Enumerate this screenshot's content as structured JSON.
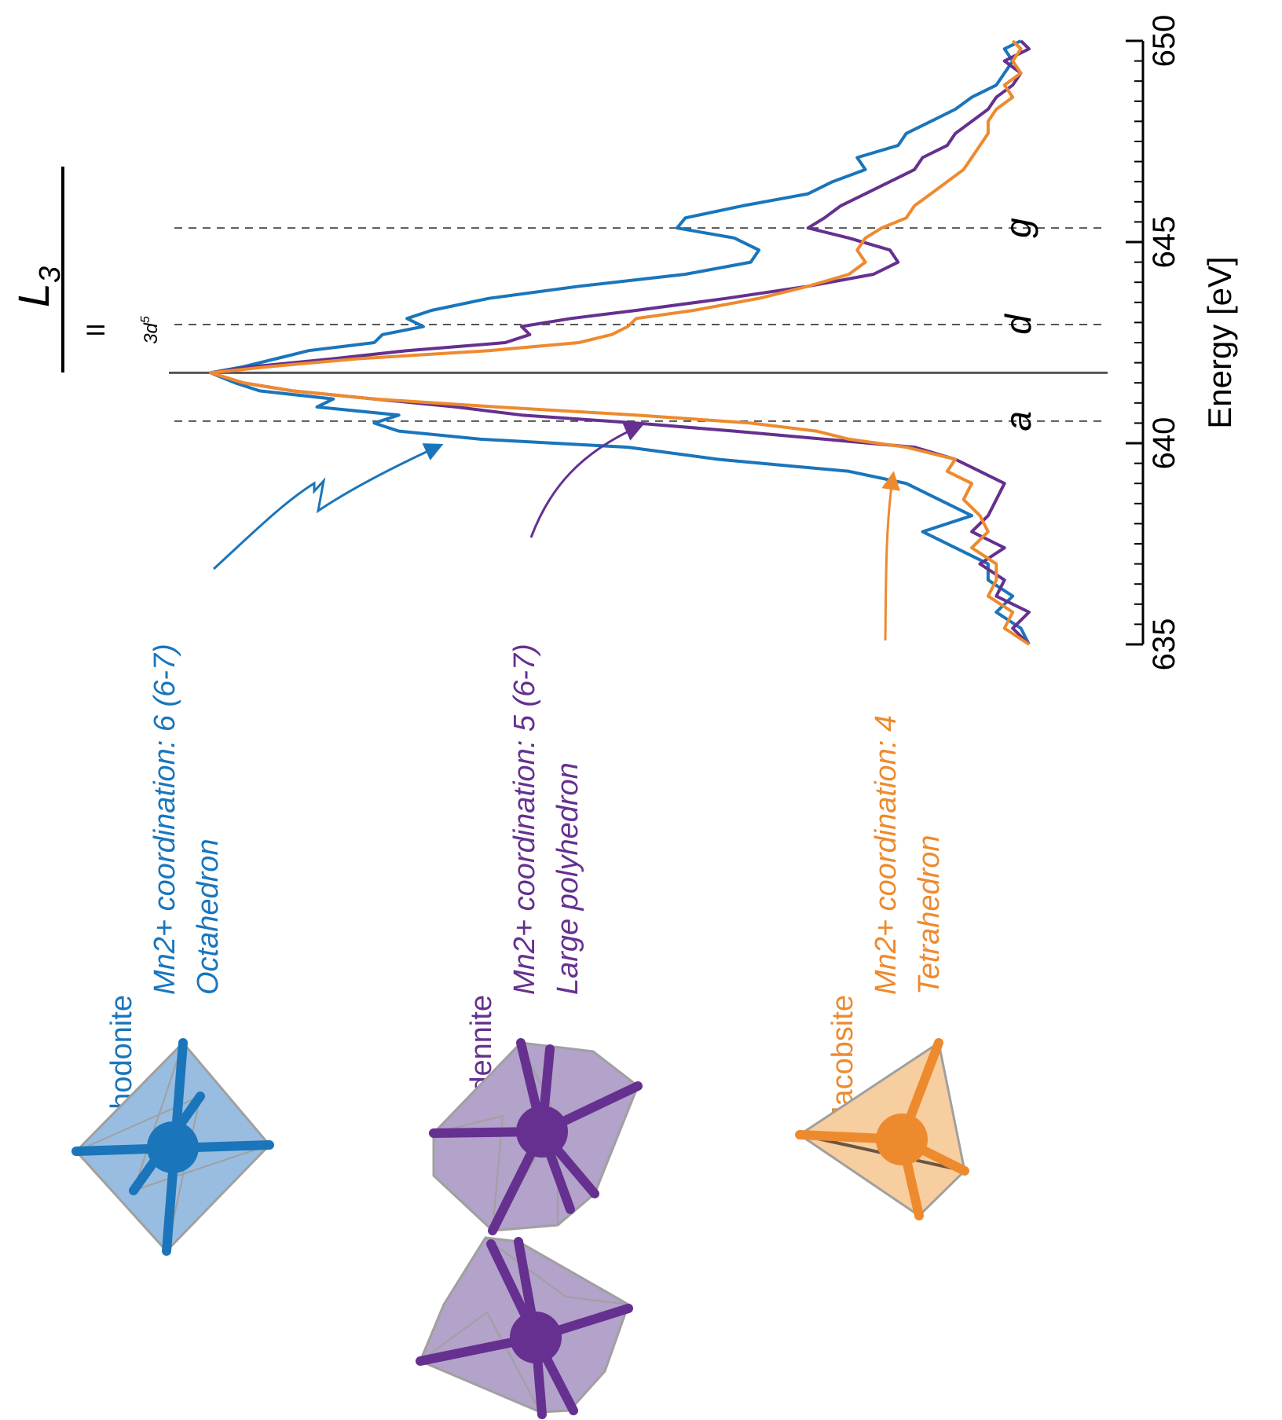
{
  "colors": {
    "rhodonite": "#1a75bb",
    "ardennite": "#65308f",
    "jacobsite": "#ee8a2e",
    "axis": "#000000",
    "gridline": "#555555",
    "polyhedron_edge": "#a0a0a0"
  },
  "header": {
    "edge_label": "L",
    "edge_subscript": "3",
    "config_numeral": "II",
    "config_label": "3d",
    "config_superscript": "5"
  },
  "chart_data": {
    "type": "line",
    "orientation": "rotated-90-ccw",
    "xlabel": "Energy [eV]",
    "ylabel": "",
    "xlim": [
      635,
      650
    ],
    "x_ticks": [
      635,
      640,
      645,
      650
    ],
    "x_tick_labels": [
      "635",
      "640",
      "645",
      "650"
    ],
    "minor_tick_step": 0.5,
    "grid": false,
    "legend": "none",
    "reference_lines": [
      {
        "label": "a",
        "x": 640.55,
        "style": "dashed"
      },
      {
        "label": "",
        "x": 641.75,
        "style": "solid"
      },
      {
        "label": "d",
        "x": 642.95,
        "style": "dashed"
      },
      {
        "label": "g",
        "x": 645.35,
        "style": "dashed"
      }
    ],
    "series": [
      {
        "key": "rhodonite",
        "name": "Rhodonite",
        "color": "#1a75bb",
        "x": [
          635.0,
          635.4,
          635.8,
          636.2,
          636.6,
          637.0,
          637.4,
          637.8,
          638.2,
          638.6,
          639.0,
          639.3,
          639.6,
          639.9,
          640.1,
          640.3,
          640.5,
          640.7,
          640.9,
          641.1,
          641.3,
          641.5,
          641.75,
          641.9,
          642.1,
          642.3,
          642.5,
          642.7,
          642.9,
          643.1,
          643.3,
          643.6,
          643.9,
          644.2,
          644.5,
          644.8,
          645.1,
          645.35,
          645.6,
          645.9,
          646.2,
          646.5,
          646.8,
          647.1,
          647.4,
          647.7,
          648.0,
          648.3,
          648.6,
          648.9,
          649.2,
          649.5,
          649.8,
          650.0
        ],
        "y": [
          0.0,
          0.01,
          0.04,
          0.02,
          0.05,
          0.05,
          0.09,
          0.13,
          0.07,
          0.11,
          0.15,
          0.22,
          0.38,
          0.49,
          0.67,
          0.77,
          0.8,
          0.77,
          0.87,
          0.85,
          0.94,
          0.97,
          1.0,
          0.96,
          0.92,
          0.88,
          0.8,
          0.79,
          0.74,
          0.76,
          0.73,
          0.66,
          0.55,
          0.42,
          0.34,
          0.33,
          0.36,
          0.43,
          0.42,
          0.35,
          0.27,
          0.24,
          0.2,
          0.21,
          0.16,
          0.15,
          0.12,
          0.09,
          0.07,
          0.04,
          0.03,
          0.02,
          0.03,
          0.01
        ]
      },
      {
        "key": "ardennite",
        "name": "As-Ardennite",
        "color": "#65308f",
        "x": [
          635.0,
          635.4,
          635.8,
          636.2,
          636.6,
          637.0,
          637.4,
          637.8,
          638.2,
          638.6,
          639.0,
          639.3,
          639.6,
          639.9,
          640.1,
          640.3,
          640.5,
          640.7,
          640.9,
          641.1,
          641.3,
          641.5,
          641.75,
          641.9,
          642.1,
          642.3,
          642.5,
          642.7,
          642.9,
          643.1,
          643.3,
          643.6,
          643.9,
          644.2,
          644.5,
          644.8,
          645.1,
          645.35,
          645.6,
          645.9,
          646.2,
          646.5,
          646.8,
          647.1,
          647.4,
          647.7,
          648.0,
          648.3,
          648.6,
          648.9,
          649.2,
          649.5,
          649.8,
          650.0
        ],
        "y": [
          0.0,
          0.02,
          0.0,
          0.04,
          0.03,
          0.06,
          0.03,
          0.07,
          0.05,
          0.04,
          0.03,
          0.06,
          0.09,
          0.14,
          0.25,
          0.36,
          0.48,
          0.62,
          0.7,
          0.8,
          0.9,
          0.96,
          1.0,
          0.95,
          0.85,
          0.76,
          0.64,
          0.61,
          0.62,
          0.56,
          0.48,
          0.37,
          0.27,
          0.19,
          0.16,
          0.17,
          0.22,
          0.27,
          0.25,
          0.23,
          0.2,
          0.17,
          0.14,
          0.13,
          0.1,
          0.09,
          0.07,
          0.05,
          0.04,
          0.02,
          0.01,
          0.03,
          0.0,
          0.01
        ]
      },
      {
        "key": "jacobsite",
        "name": "Jacobsite",
        "color": "#ee8a2e",
        "x": [
          635.0,
          635.4,
          635.8,
          636.2,
          636.6,
          637.0,
          637.4,
          637.8,
          638.2,
          638.6,
          639.0,
          639.3,
          639.6,
          639.9,
          640.1,
          640.3,
          640.5,
          640.7,
          640.9,
          641.1,
          641.3,
          641.5,
          641.75,
          641.9,
          642.1,
          642.3,
          642.5,
          642.7,
          642.9,
          643.1,
          643.3,
          643.6,
          643.9,
          644.2,
          644.5,
          644.8,
          645.1,
          645.35,
          645.6,
          645.9,
          646.2,
          646.5,
          646.8,
          647.1,
          647.4,
          647.7,
          648.0,
          648.3,
          648.6,
          648.9,
          649.2,
          649.5,
          649.8,
          650.0
        ],
        "y": [
          0.0,
          0.03,
          0.02,
          0.05,
          0.04,
          0.04,
          0.07,
          0.05,
          0.06,
          0.08,
          0.07,
          0.1,
          0.09,
          0.15,
          0.22,
          0.26,
          0.34,
          0.48,
          0.65,
          0.8,
          0.9,
          0.96,
          1.0,
          0.93,
          0.82,
          0.66,
          0.55,
          0.51,
          0.49,
          0.48,
          0.41,
          0.33,
          0.27,
          0.22,
          0.2,
          0.21,
          0.2,
          0.18,
          0.15,
          0.14,
          0.12,
          0.1,
          0.08,
          0.07,
          0.06,
          0.05,
          0.05,
          0.04,
          0.02,
          0.03,
          0.01,
          0.02,
          0.01,
          0.02
        ]
      }
    ]
  },
  "annotations": [
    {
      "key": "rhodonite",
      "mineral": "Rhodonite",
      "coordination": "Mn2+ coordination: 6 (6-7)",
      "polyhedron": "Octahedron"
    },
    {
      "key": "ardennite",
      "mineral": "As-Ardennite",
      "coordination": "Mn2+ coordination: 5 (6-7)",
      "polyhedron": "Large polyhedron"
    },
    {
      "key": "jacobsite",
      "mineral": "Jacobsite",
      "coordination": "Mn2+ coordination: 4",
      "polyhedron": "Tetrahedron"
    }
  ],
  "icons": [
    "octahedron-icon",
    "large-polyhedron-icon",
    "large-polyhedron-alt-icon",
    "tetrahedron-icon"
  ]
}
